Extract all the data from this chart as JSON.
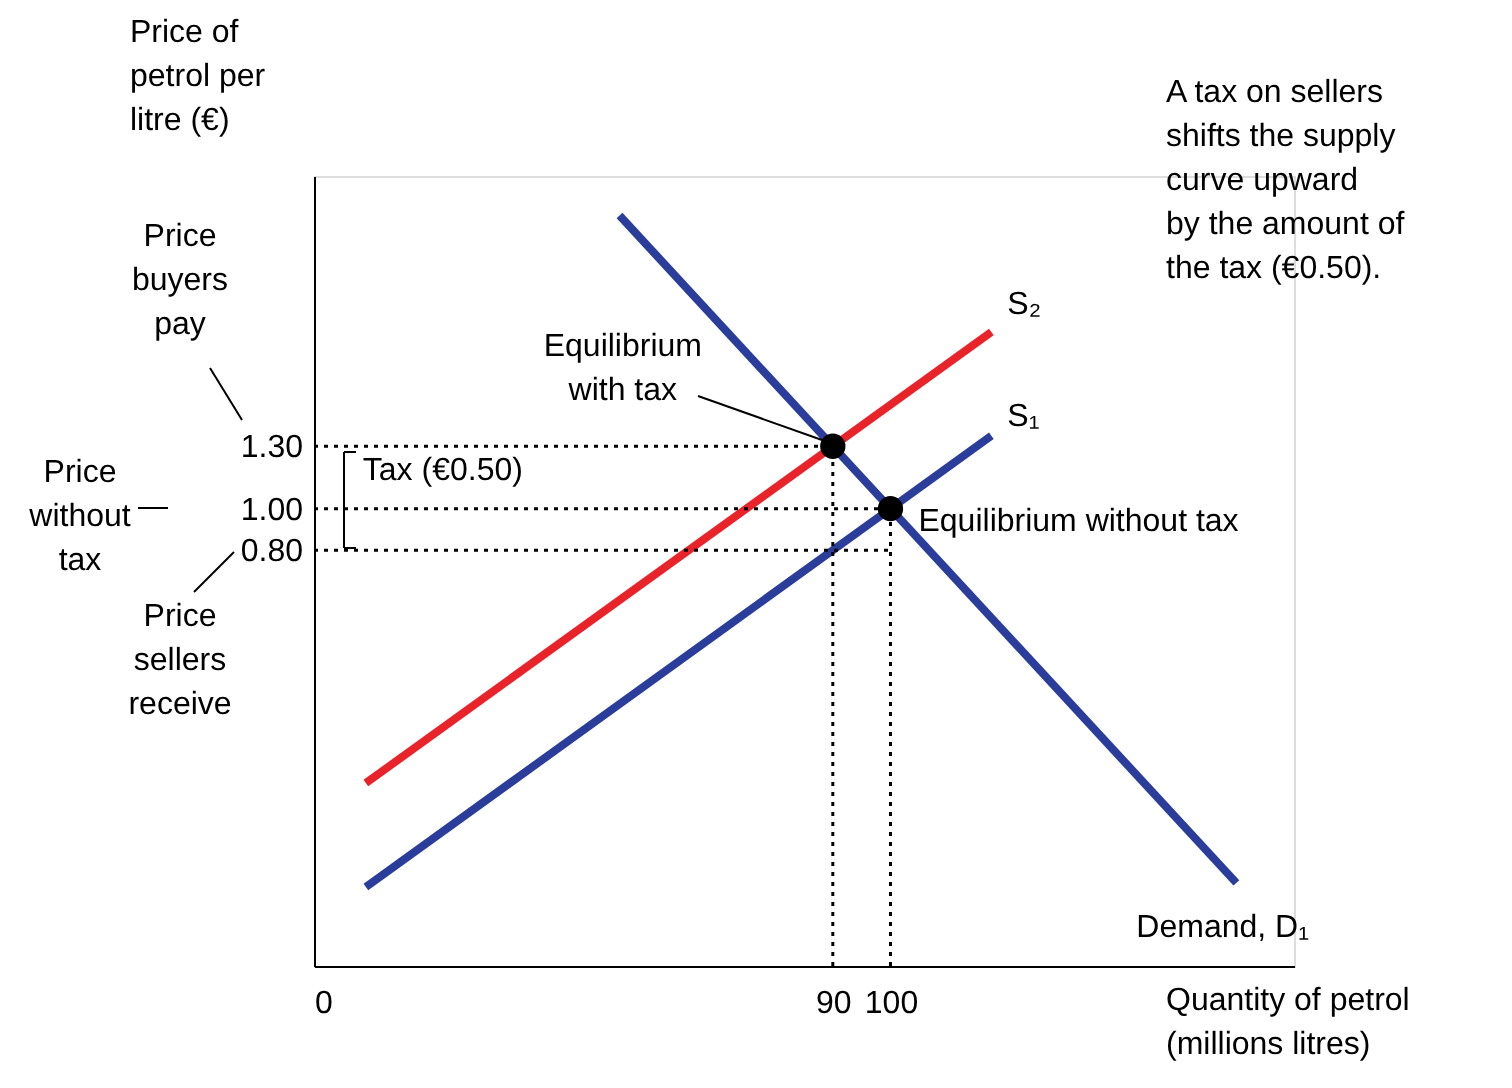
{
  "chart_data": {
    "type": "line",
    "xlabel": "Quantity of petrol\n(millions litres)",
    "ylabel": "Price of\npetrol per\nlitre (€)",
    "xlim": [
      0,
      170
    ],
    "ylim": [
      -1.2,
      2.6
    ],
    "xticks": [
      0,
      90,
      100
    ],
    "yticks": [
      {
        "value": 0.8,
        "label": "0.80"
      },
      {
        "value": 1.0,
        "label": "1.00"
      },
      {
        "value": 1.3,
        "label": "1.30"
      }
    ],
    "grid": false,
    "series": [
      {
        "name": "Demand, D₁",
        "color": "#2b3d9b",
        "x": [
          53,
          160
        ],
        "values": [
          2.41,
          -0.8
        ]
      },
      {
        "name": "S₁",
        "color": "#2b3d9b",
        "x": [
          9,
          117.5
        ],
        "values": [
          -0.82,
          1.35
        ]
      },
      {
        "name": "S₂",
        "color": "#e8232a",
        "x": [
          9,
          117.5
        ],
        "values": [
          -0.32,
          1.85
        ]
      },
      {
        "type": "line",
        "line_style": "dotted",
        "color": "#000000",
        "x": [
          0,
          90
        ],
        "values": [
          1.3,
          1.3
        ]
      },
      {
        "type": "line",
        "line_style": "dotted",
        "color": "#000000",
        "x": [
          0,
          100
        ],
        "values": [
          1.0,
          1.0
        ]
      },
      {
        "type": "line",
        "line_style": "dotted",
        "color": "#000000",
        "x": [
          0,
          100
        ],
        "values": [
          0.8,
          0.8
        ]
      },
      {
        "type": "line",
        "line_style": "dotted",
        "color": "#000000",
        "x": [
          90,
          90
        ],
        "values": [
          -1.2,
          1.3
        ]
      },
      {
        "type": "line",
        "line_style": "dotted",
        "color": "#000000",
        "x": [
          100,
          100
        ],
        "values": [
          -1.2,
          1.0
        ]
      },
      {
        "type": "scatter",
        "marker": "circle",
        "color": "#000000",
        "x": [
          90,
          100
        ],
        "values": [
          1.3,
          1.0
        ]
      }
    ],
    "annotations": [
      "Price\nbuyers\npay",
      "Price\nwithout\ntax",
      "Price\nsellers\nreceive",
      {
        "text": "Equilibrium\nwith tax",
        "x": 90,
        "y": 1.3
      },
      {
        "text": "Equilibrium without tax",
        "x": 100,
        "y": 1.0
      },
      {
        "text": "Tax (€0.50)",
        "x": 5,
        "y": 1.05
      },
      "A tax on sellers\nshifts the supply\ncurve upward\nby the amount of\nthe tax (€0.50)."
    ]
  }
}
